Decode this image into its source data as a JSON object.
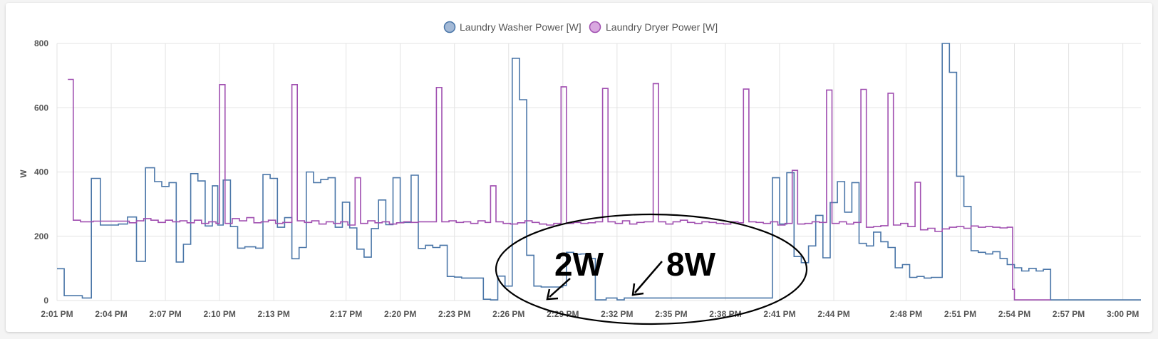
{
  "chart_data": {
    "type": "line",
    "step": true,
    "ylabel": "W",
    "ylim": [
      0,
      800
    ],
    "yticks": [
      0,
      200,
      400,
      600,
      800
    ],
    "xlim": [
      "2:01 PM",
      "3:01 PM"
    ],
    "xticks": [
      "2:01 PM",
      "2:04 PM",
      "2:07 PM",
      "2:10 PM",
      "2:13 PM",
      "2:17 PM",
      "2:20 PM",
      "2:23 PM",
      "2:26 PM",
      "2:29 PM",
      "2:32 PM",
      "2:35 PM",
      "2:38 PM",
      "2:41 PM",
      "2:44 PM",
      "2:48 PM",
      "2:51 PM",
      "2:54 PM",
      "2:57 PM",
      "3:00 PM"
    ],
    "grid": true,
    "legend_position": "top-center",
    "series": [
      {
        "name": "Laundry Washer Power [W]",
        "color": "#4a76a8",
        "fill": "#a3b9d6",
        "points": [
          [
            "2:01:00 PM",
            99
          ],
          [
            "2:01:24 PM",
            15
          ],
          [
            "2:02:24 PM",
            8
          ],
          [
            "2:02:54 PM",
            380
          ],
          [
            "2:03:24 PM",
            235
          ],
          [
            "2:04:24 PM",
            238
          ],
          [
            "2:04:54 PM",
            260
          ],
          [
            "2:05:24 PM",
            122
          ],
          [
            "2:05:54 PM",
            413
          ],
          [
            "2:06:24 PM",
            370
          ],
          [
            "2:06:48 PM",
            355
          ],
          [
            "2:07:12 PM",
            367
          ],
          [
            "2:07:36 PM",
            120
          ],
          [
            "2:08:00 PM",
            175
          ],
          [
            "2:08:24 PM",
            395
          ],
          [
            "2:08:48 PM",
            372
          ],
          [
            "2:09:12 PM",
            232
          ],
          [
            "2:09:36 PM",
            357
          ],
          [
            "2:09:54 PM",
            235
          ],
          [
            "2:10:12 PM",
            375
          ],
          [
            "2:10:36 PM",
            230
          ],
          [
            "2:11:00 PM",
            163
          ],
          [
            "2:11:24 PM",
            167
          ],
          [
            "2:12:00 PM",
            163
          ],
          [
            "2:12:24 PM",
            392
          ],
          [
            "2:12:48 PM",
            380
          ],
          [
            "2:13:12 PM",
            228
          ],
          [
            "2:13:36 PM",
            258
          ],
          [
            "2:14:00 PM",
            130
          ],
          [
            "2:14:24 PM",
            165
          ],
          [
            "2:14:48 PM",
            400
          ],
          [
            "2:15:12 PM",
            367
          ],
          [
            "2:15:36 PM",
            377
          ],
          [
            "2:16:00 PM",
            382
          ],
          [
            "2:16:24 PM",
            228
          ],
          [
            "2:16:48 PM",
            306
          ],
          [
            "2:17:12 PM",
            226
          ],
          [
            "2:17:36 PM",
            160
          ],
          [
            "2:18:00 PM",
            135
          ],
          [
            "2:18:24 PM",
            224
          ],
          [
            "2:18:48 PM",
            313
          ],
          [
            "2:19:12 PM",
            236
          ],
          [
            "2:19:36 PM",
            382
          ],
          [
            "2:20:00 PM",
            243
          ],
          [
            "2:20:36 PM",
            390
          ],
          [
            "2:21:00 PM",
            162
          ],
          [
            "2:21:24 PM",
            172
          ],
          [
            "2:21:48 PM",
            165
          ],
          [
            "2:22:12 PM",
            172
          ],
          [
            "2:22:36 PM",
            75
          ],
          [
            "2:23:00 PM",
            73
          ],
          [
            "2:23:24 PM",
            70
          ],
          [
            "2:24:36 PM",
            4
          ],
          [
            "2:25:00 PM",
            2
          ],
          [
            "2:25:24 PM",
            76
          ],
          [
            "2:25:48 PM",
            45
          ],
          [
            "2:26:12 PM",
            754
          ],
          [
            "2:26:36 PM",
            625
          ],
          [
            "2:27:00 PM",
            141
          ],
          [
            "2:27:24 PM",
            45
          ],
          [
            "2:27:48 PM",
            42
          ],
          [
            "2:29:00 PM",
            47
          ],
          [
            "2:29:12 PM",
            150
          ],
          [
            "2:29:36 PM",
            144
          ],
          [
            "2:30:00 PM",
            145
          ],
          [
            "2:30:30 PM",
            131
          ],
          [
            "2:30:48 PM",
            2
          ],
          [
            "2:31:24 PM",
            8
          ],
          [
            "2:32:00 PM",
            2
          ],
          [
            "2:32:24 PM",
            8
          ],
          [
            "2:37:48 PM",
            8
          ],
          [
            "2:38:00 PM",
            8
          ],
          [
            "2:40:36 PM",
            382
          ],
          [
            "2:41:00 PM",
            238
          ],
          [
            "2:41:24 PM",
            398
          ],
          [
            "2:41:48 PM",
            137
          ],
          [
            "2:42:12 PM",
            118
          ],
          [
            "2:42:36 PM",
            170
          ],
          [
            "2:43:00 PM",
            265
          ],
          [
            "2:43:24 PM",
            133
          ],
          [
            "2:43:48 PM",
            305
          ],
          [
            "2:44:12 PM",
            370
          ],
          [
            "2:44:36 PM",
            275
          ],
          [
            "2:45:00 PM",
            367
          ],
          [
            "2:45:24 PM",
            178
          ],
          [
            "2:45:48 PM",
            170
          ],
          [
            "2:46:12 PM",
            213
          ],
          [
            "2:46:36 PM",
            183
          ],
          [
            "2:47:00 PM",
            165
          ],
          [
            "2:47:24 PM",
            102
          ],
          [
            "2:47:48 PM",
            112
          ],
          [
            "2:48:12 PM",
            72
          ],
          [
            "2:48:36 PM",
            75
          ],
          [
            "2:49:00 PM",
            70
          ],
          [
            "2:49:24 PM",
            72
          ],
          [
            "2:50:00 PM",
            800
          ],
          [
            "2:50:24 PM",
            710
          ],
          [
            "2:50:48 PM",
            387
          ],
          [
            "2:51:12 PM",
            293
          ],
          [
            "2:51:36 PM",
            155
          ],
          [
            "2:52:00 PM",
            150
          ],
          [
            "2:52:24 PM",
            145
          ],
          [
            "2:52:48 PM",
            152
          ],
          [
            "2:53:12 PM",
            131
          ],
          [
            "2:53:36 PM",
            112
          ],
          [
            "2:54:00 PM",
            102
          ],
          [
            "2:54:24 PM",
            92
          ],
          [
            "2:54:48 PM",
            100
          ],
          [
            "2:55:12 PM",
            92
          ],
          [
            "2:55:36 PM",
            97
          ],
          [
            "2:56:00 PM",
            2
          ],
          [
            "3:01:00 PM",
            2
          ]
        ]
      },
      {
        "name": "Laundry Dryer Power [W]",
        "color": "#a04fb0",
        "fill": "#d9a8e0",
        "points": [
          [
            "2:01:36 PM",
            688
          ],
          [
            "2:01:54 PM",
            250
          ],
          [
            "2:02:18 PM",
            245
          ],
          [
            "2:03:00 PM",
            247
          ],
          [
            "2:05:00 PM",
            242
          ],
          [
            "2:05:24 PM",
            248
          ],
          [
            "2:05:48 PM",
            255
          ],
          [
            "2:06:12 PM",
            250
          ],
          [
            "2:06:36 PM",
            243
          ],
          [
            "2:07:00 PM",
            250
          ],
          [
            "2:07:24 PM",
            245
          ],
          [
            "2:07:48 PM",
            248
          ],
          [
            "2:08:12 PM",
            242
          ],
          [
            "2:08:36 PM",
            250
          ],
          [
            "2:09:00 PM",
            240
          ],
          [
            "2:09:24 PM",
            245
          ],
          [
            "2:09:48 PM",
            240
          ],
          [
            "2:10:00 PM",
            672
          ],
          [
            "2:10:18 PM",
            240
          ],
          [
            "2:10:42 PM",
            255
          ],
          [
            "2:11:06 PM",
            248
          ],
          [
            "2:11:30 PM",
            258
          ],
          [
            "2:11:54 PM",
            242
          ],
          [
            "2:12:18 PM",
            245
          ],
          [
            "2:12:42 PM",
            250
          ],
          [
            "2:13:06 PM",
            240
          ],
          [
            "2:13:30 PM",
            243
          ],
          [
            "2:14:00 PM",
            672
          ],
          [
            "2:14:18 PM",
            248
          ],
          [
            "2:14:42 PM",
            243
          ],
          [
            "2:15:06 PM",
            248
          ],
          [
            "2:15:30 PM",
            238
          ],
          [
            "2:15:54 PM",
            245
          ],
          [
            "2:16:18 PM",
            240
          ],
          [
            "2:16:42 PM",
            245
          ],
          [
            "2:17:06 PM",
            235
          ],
          [
            "2:17:30 PM",
            382
          ],
          [
            "2:17:48 PM",
            240
          ],
          [
            "2:18:12 PM",
            248
          ],
          [
            "2:18:36 PM",
            242
          ],
          [
            "2:19:00 PM",
            245
          ],
          [
            "2:19:24 PM",
            238
          ],
          [
            "2:19:48 PM",
            242
          ],
          [
            "2:20:12 PM",
            245
          ],
          [
            "2:20:36 PM",
            243
          ],
          [
            "2:21:00 PM",
            245
          ],
          [
            "2:21:36 PM",
            245
          ],
          [
            "2:22:00 PM",
            663
          ],
          [
            "2:22:18 PM",
            245
          ],
          [
            "2:22:42 PM",
            248
          ],
          [
            "2:23:06 PM",
            243
          ],
          [
            "2:23:30 PM",
            245
          ],
          [
            "2:23:54 PM",
            240
          ],
          [
            "2:24:18 PM",
            248
          ],
          [
            "2:24:42 PM",
            243
          ],
          [
            "2:25:00 PM",
            357
          ],
          [
            "2:25:18 PM",
            245
          ],
          [
            "2:25:42 PM",
            240
          ],
          [
            "2:26:06 PM",
            238
          ],
          [
            "2:26:30 PM",
            242
          ],
          [
            "2:26:54 PM",
            248
          ],
          [
            "2:27:18 PM",
            243
          ],
          [
            "2:27:42 PM",
            238
          ],
          [
            "2:28:06 PM",
            235
          ],
          [
            "2:28:30 PM",
            240
          ],
          [
            "2:28:54 PM",
            665
          ],
          [
            "2:29:12 PM",
            240
          ],
          [
            "2:29:36 PM",
            243
          ],
          [
            "2:30:00 PM",
            240
          ],
          [
            "2:30:24 PM",
            242
          ],
          [
            "2:30:48 PM",
            245
          ],
          [
            "2:31:12 PM",
            660
          ],
          [
            "2:31:30 PM",
            245
          ],
          [
            "2:31:54 PM",
            240
          ],
          [
            "2:32:18 PM",
            248
          ],
          [
            "2:32:42 PM",
            238
          ],
          [
            "2:33:06 PM",
            243
          ],
          [
            "2:33:30 PM",
            245
          ],
          [
            "2:34:00 PM",
            675
          ],
          [
            "2:34:18 PM",
            245
          ],
          [
            "2:34:42 PM",
            238
          ],
          [
            "2:35:06 PM",
            245
          ],
          [
            "2:35:30 PM",
            250
          ],
          [
            "2:35:54 PM",
            243
          ],
          [
            "2:36:18 PM",
            240
          ],
          [
            "2:36:42 PM",
            245
          ],
          [
            "2:37:06 PM",
            243
          ],
          [
            "2:37:30 PM",
            240
          ],
          [
            "2:37:54 PM",
            238
          ],
          [
            "2:38:18 PM",
            245
          ],
          [
            "2:38:42 PM",
            242
          ],
          [
            "2:39:00 PM",
            658
          ],
          [
            "2:39:18 PM",
            245
          ],
          [
            "2:39:42 PM",
            243
          ],
          [
            "2:40:06 PM",
            240
          ],
          [
            "2:40:30 PM",
            245
          ],
          [
            "2:40:54 PM",
            235
          ],
          [
            "2:41:18 PM",
            240
          ],
          [
            "2:41:42 PM",
            405
          ],
          [
            "2:42:00 PM",
            238
          ],
          [
            "2:42:24 PM",
            240
          ],
          [
            "2:42:48 PM",
            245
          ],
          [
            "2:43:12 PM",
            243
          ],
          [
            "2:43:36 PM",
            655
          ],
          [
            "2:43:54 PM",
            240
          ],
          [
            "2:44:18 PM",
            245
          ],
          [
            "2:44:42 PM",
            238
          ],
          [
            "2:45:06 PM",
            243
          ],
          [
            "2:45:30 PM",
            657
          ],
          [
            "2:45:48 PM",
            228
          ],
          [
            "2:46:12 PM",
            230
          ],
          [
            "2:46:36 PM",
            233
          ],
          [
            "2:47:00 PM",
            645
          ],
          [
            "2:47:18 PM",
            235
          ],
          [
            "2:47:42 PM",
            240
          ],
          [
            "2:48:06 PM",
            230
          ],
          [
            "2:48:30 PM",
            368
          ],
          [
            "2:48:48 PM",
            220
          ],
          [
            "2:49:12 PM",
            225
          ],
          [
            "2:49:36 PM",
            215
          ],
          [
            "2:50:00 PM",
            223
          ],
          [
            "2:50:24 PM",
            228
          ],
          [
            "2:50:48 PM",
            230
          ],
          [
            "2:51:12 PM",
            225
          ],
          [
            "2:51:36 PM",
            232
          ],
          [
            "2:52:00 PM",
            228
          ],
          [
            "2:52:24 PM",
            230
          ],
          [
            "2:52:48 PM",
            228
          ],
          [
            "2:53:12 PM",
            226
          ],
          [
            "2:53:36 PM",
            228
          ],
          [
            "2:53:54 PM",
            35
          ],
          [
            "2:54:00 PM",
            2
          ],
          [
            "2:56:00 PM",
            2
          ]
        ]
      }
    ],
    "annotations": [
      {
        "text": "2W",
        "target": [
          "2:30:48 PM",
          2
        ]
      },
      {
        "text": "8W",
        "target": [
          "2:34:12 PM",
          8
        ]
      }
    ]
  }
}
